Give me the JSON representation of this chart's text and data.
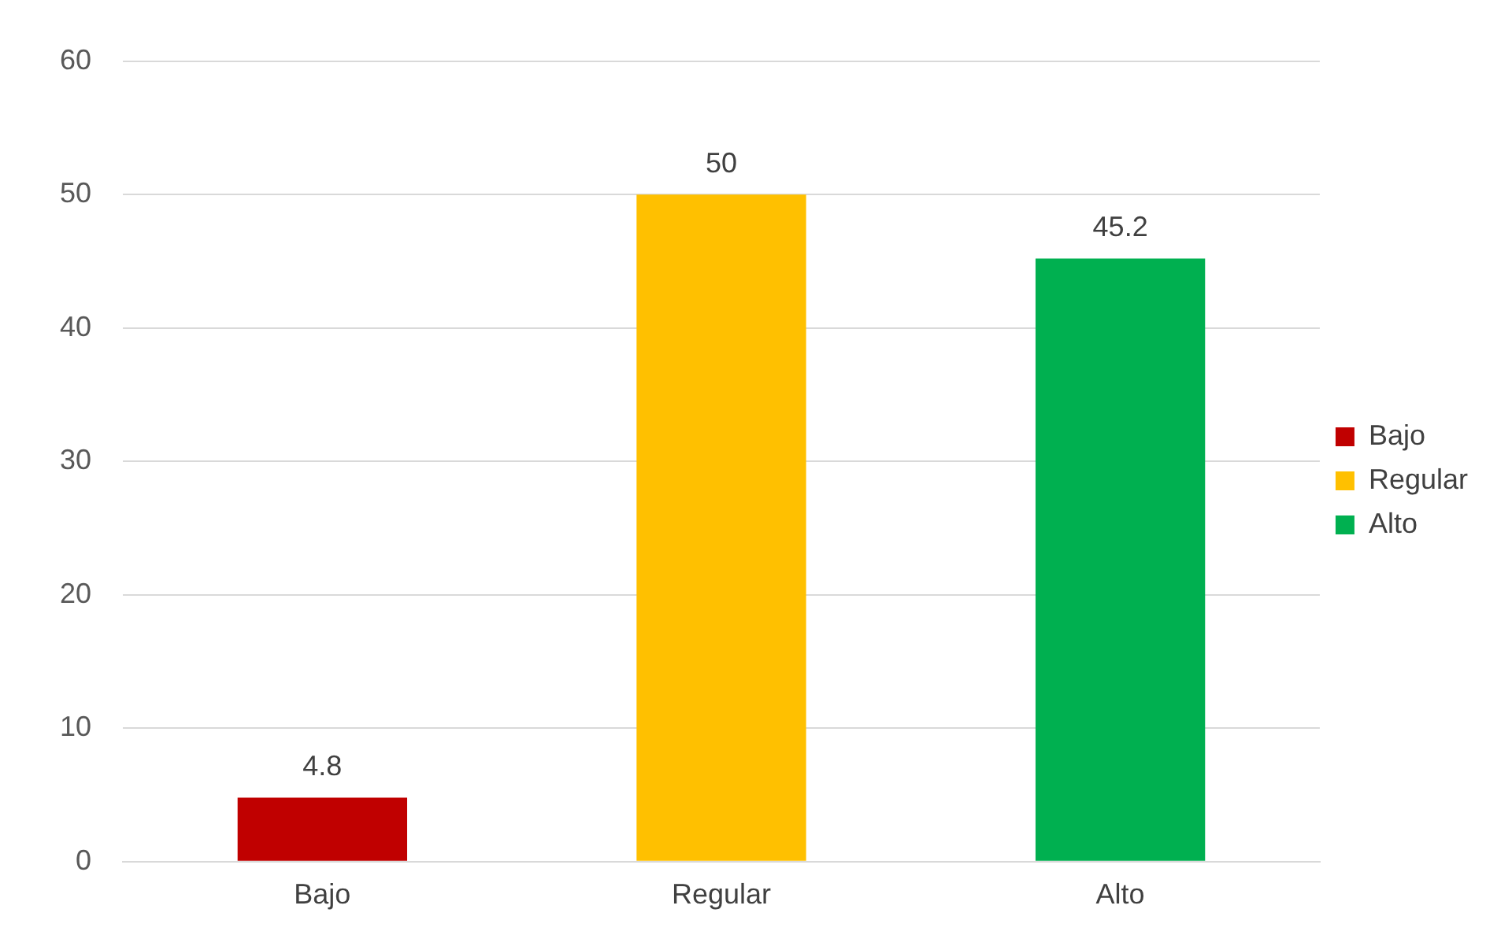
{
  "chart_data": {
    "type": "bar",
    "categories": [
      "Bajo",
      "Regular",
      "Alto"
    ],
    "series": [
      {
        "name": "Bajo",
        "color": "#c00000",
        "values": [
          4.8,
          null,
          null
        ]
      },
      {
        "name": "Regular",
        "color": "#ffc000",
        "values": [
          null,
          50,
          null
        ]
      },
      {
        "name": "Alto",
        "color": "#00b050",
        "values": [
          null,
          null,
          45.2
        ]
      }
    ],
    "ylim": [
      0,
      60
    ],
    "yticks": [
      0,
      10,
      20,
      30,
      40,
      50,
      60
    ],
    "grid": "y",
    "legend": "right",
    "data_labels": true
  }
}
